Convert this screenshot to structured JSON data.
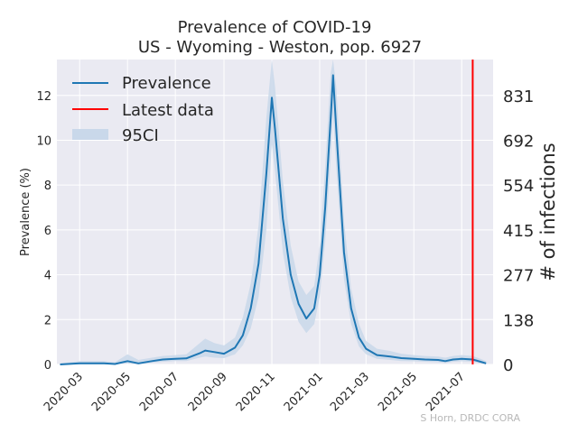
{
  "chart_data": {
    "type": "line",
    "title": "Prevalence of COVID-19",
    "subtitle": "US - Wyoming - Weston, pop. 6927",
    "ylabel": "Prevalence (%)",
    "y2label": "# of infections",
    "credit": "S Horn, DRDC CORA",
    "xlim": [
      "2020-02-01",
      "2021-08-10"
    ],
    "ylim": [
      0,
      13.6
    ],
    "x_ticks": [
      "2020-03",
      "2020-05",
      "2020-07",
      "2020-09",
      "2020-11",
      "2021-01",
      "2021-03",
      "2021-05",
      "2021-07"
    ],
    "y_ticks": [
      0,
      2,
      4,
      6,
      8,
      10,
      12
    ],
    "y2_ticks": [
      0,
      138,
      277,
      415,
      554,
      692,
      831
    ],
    "grid": true,
    "legend_position": "top-left",
    "legend": [
      "Prevalence",
      "Latest data",
      "95CI"
    ],
    "colors": {
      "prevalence": "#1f77b4",
      "latest": "#ff0000",
      "ci": "#c9d8ea",
      "background": "#eaeaf2"
    },
    "latest_date": "2021-07-15",
    "series": [
      {
        "name": "Prevalence",
        "points": [
          [
            "2020-02-05",
            0.0
          ],
          [
            "2020-03-01",
            0.05
          ],
          [
            "2020-04-01",
            0.05
          ],
          [
            "2020-04-15",
            0.02
          ],
          [
            "2020-05-01",
            0.15
          ],
          [
            "2020-05-15",
            0.05
          ],
          [
            "2020-06-01",
            0.15
          ],
          [
            "2020-06-15",
            0.22
          ],
          [
            "2020-07-01",
            0.25
          ],
          [
            "2020-07-15",
            0.27
          ],
          [
            "2020-08-01",
            0.5
          ],
          [
            "2020-08-08",
            0.62
          ],
          [
            "2020-08-20",
            0.55
          ],
          [
            "2020-09-01",
            0.48
          ],
          [
            "2020-09-15",
            0.75
          ],
          [
            "2020-09-25",
            1.3
          ],
          [
            "2020-10-05",
            2.5
          ],
          [
            "2020-10-15",
            4.5
          ],
          [
            "2020-10-25",
            8.5
          ],
          [
            "2020-11-01",
            11.9
          ],
          [
            "2020-11-05",
            10.5
          ],
          [
            "2020-11-15",
            6.5
          ],
          [
            "2020-11-25",
            4.0
          ],
          [
            "2020-12-05",
            2.7
          ],
          [
            "2020-12-15",
            2.05
          ],
          [
            "2020-12-25",
            2.5
          ],
          [
            "2021-01-01",
            4.0
          ],
          [
            "2021-01-08",
            7.0
          ],
          [
            "2021-01-15",
            11.0
          ],
          [
            "2021-01-18",
            12.9
          ],
          [
            "2021-01-22",
            10.5
          ],
          [
            "2021-02-01",
            5.0
          ],
          [
            "2021-02-10",
            2.5
          ],
          [
            "2021-02-20",
            1.2
          ],
          [
            "2021-03-01",
            0.7
          ],
          [
            "2021-03-15",
            0.42
          ],
          [
            "2021-04-01",
            0.35
          ],
          [
            "2021-04-15",
            0.28
          ],
          [
            "2021-05-01",
            0.25
          ],
          [
            "2021-05-15",
            0.22
          ],
          [
            "2021-06-01",
            0.2
          ],
          [
            "2021-06-10",
            0.15
          ],
          [
            "2021-06-20",
            0.22
          ],
          [
            "2021-07-01",
            0.25
          ],
          [
            "2021-07-15",
            0.22
          ],
          [
            "2021-07-25",
            0.12
          ],
          [
            "2021-08-01",
            0.05
          ]
        ],
        "ci_points": [
          [
            "2020-02-05",
            0.0,
            0.05
          ],
          [
            "2020-03-01",
            0.0,
            0.15
          ],
          [
            "2020-04-01",
            0.0,
            0.15
          ],
          [
            "2020-04-15",
            0.0,
            0.1
          ],
          [
            "2020-05-01",
            0.05,
            0.45
          ],
          [
            "2020-05-15",
            0.0,
            0.2
          ],
          [
            "2020-06-01",
            0.08,
            0.3
          ],
          [
            "2020-06-15",
            0.12,
            0.38
          ],
          [
            "2020-07-01",
            0.15,
            0.42
          ],
          [
            "2020-07-15",
            0.15,
            0.45
          ],
          [
            "2020-08-01",
            0.3,
            0.95
          ],
          [
            "2020-08-08",
            0.35,
            1.15
          ],
          [
            "2020-08-20",
            0.3,
            0.95
          ],
          [
            "2020-09-01",
            0.28,
            0.85
          ],
          [
            "2020-09-15",
            0.45,
            1.2
          ],
          [
            "2020-09-25",
            0.85,
            2.1
          ],
          [
            "2020-10-05",
            1.6,
            3.6
          ],
          [
            "2020-10-15",
            3.0,
            6.2
          ],
          [
            "2020-10-25",
            6.0,
            11.0
          ],
          [
            "2020-11-01",
            9.8,
            13.6
          ],
          [
            "2020-11-05",
            8.6,
            12.4
          ],
          [
            "2020-11-15",
            5.0,
            8.2
          ],
          [
            "2020-11-25",
            3.0,
            5.3
          ],
          [
            "2020-12-05",
            1.9,
            3.7
          ],
          [
            "2020-12-15",
            1.4,
            3.1
          ],
          [
            "2020-12-25",
            1.8,
            3.5
          ],
          [
            "2021-01-01",
            3.0,
            5.3
          ],
          [
            "2021-01-08",
            5.5,
            8.8
          ],
          [
            "2021-01-15",
            9.2,
            13.0
          ],
          [
            "2021-01-18",
            11.2,
            13.6
          ],
          [
            "2021-01-22",
            8.8,
            12.4
          ],
          [
            "2021-02-01",
            3.8,
            6.4
          ],
          [
            "2021-02-10",
            1.8,
            3.4
          ],
          [
            "2021-02-20",
            0.8,
            1.8
          ],
          [
            "2021-03-01",
            0.45,
            1.05
          ],
          [
            "2021-03-15",
            0.25,
            0.7
          ],
          [
            "2021-04-01",
            0.2,
            0.6
          ],
          [
            "2021-04-15",
            0.15,
            0.48
          ],
          [
            "2021-05-01",
            0.14,
            0.42
          ],
          [
            "2021-05-15",
            0.12,
            0.38
          ],
          [
            "2021-06-01",
            0.1,
            0.35
          ],
          [
            "2021-06-10",
            0.06,
            0.3
          ],
          [
            "2021-06-20",
            0.12,
            0.38
          ],
          [
            "2021-07-01",
            0.14,
            0.42
          ],
          [
            "2021-07-15",
            0.12,
            0.38
          ],
          [
            "2021-07-25",
            0.05,
            0.25
          ],
          [
            "2021-08-01",
            0.0,
            0.15
          ]
        ]
      }
    ]
  }
}
